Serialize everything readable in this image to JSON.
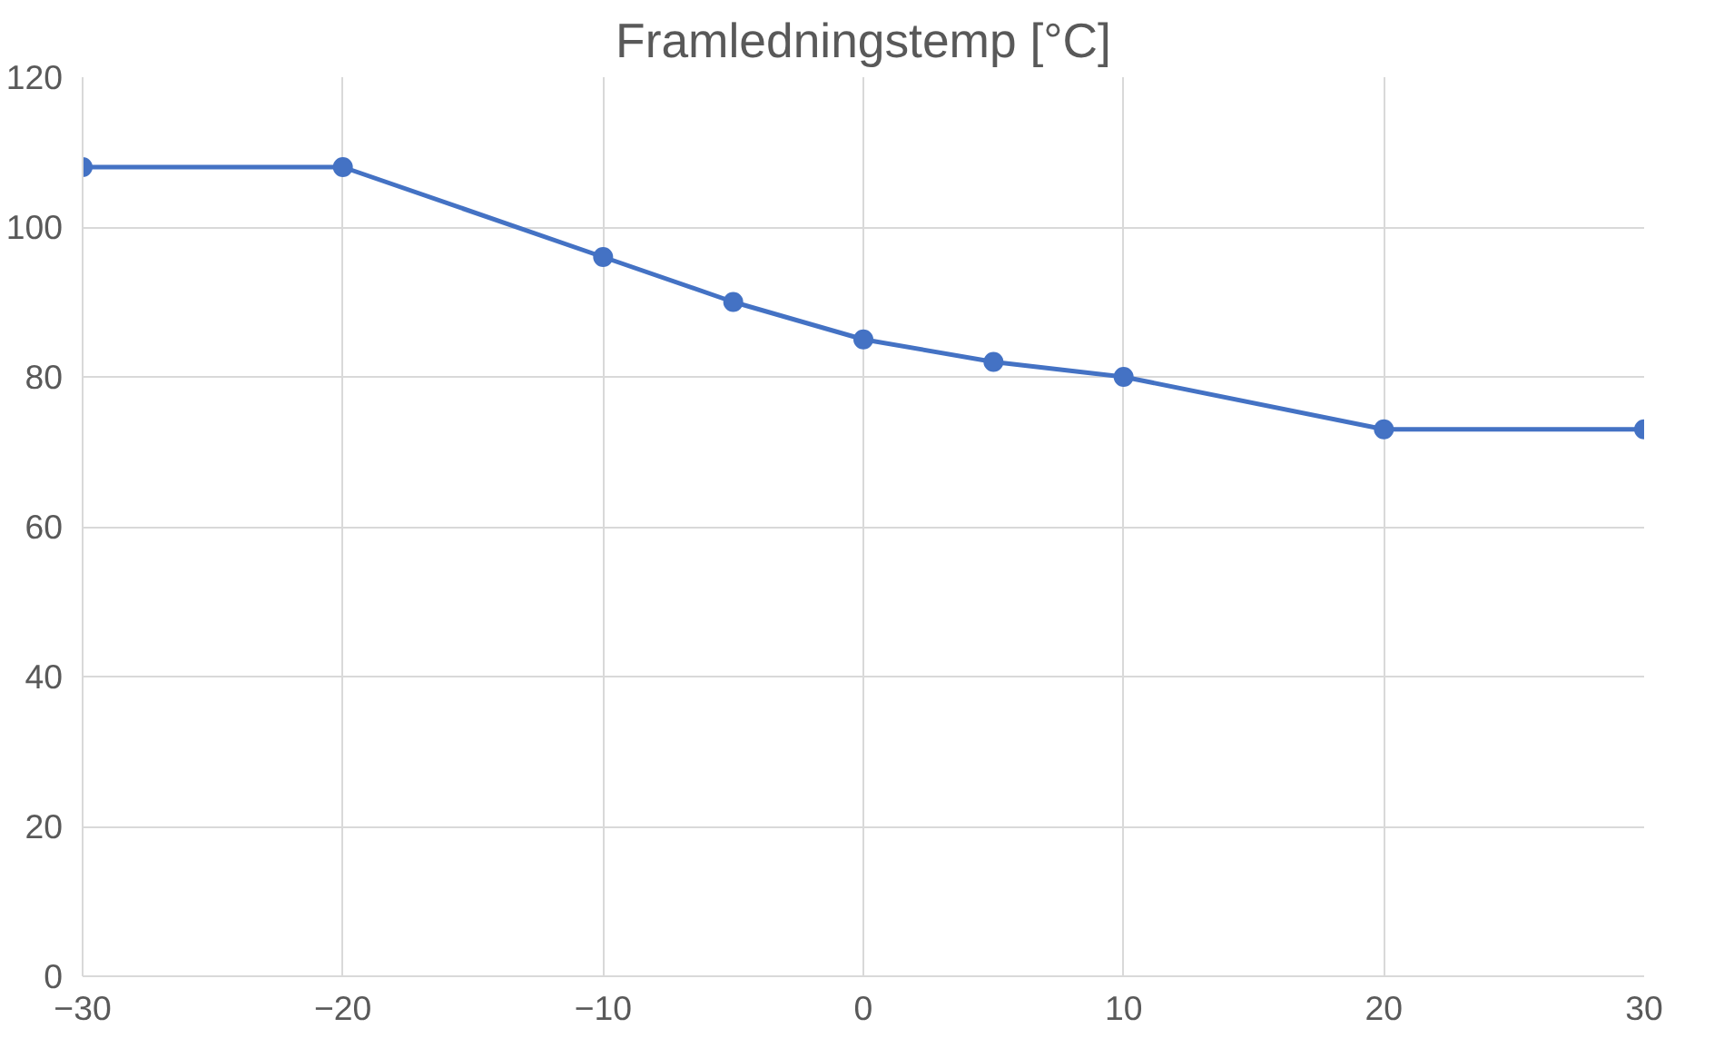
{
  "chart_data": {
    "type": "line",
    "title": "Framledningstemp [°C]",
    "x": [
      -30,
      -20,
      -10,
      -5,
      0,
      5,
      10,
      20,
      30
    ],
    "series": [
      {
        "color": "#4472c4",
        "values": [
          108,
          108,
          96,
          90,
          85,
          82,
          80,
          73,
          73
        ]
      }
    ],
    "xlim": [
      -30,
      30
    ],
    "xticks": [
      -30,
      -20,
      -10,
      0,
      10,
      20,
      30
    ],
    "ylim": [
      0,
      120
    ],
    "yticks": [
      0,
      20,
      40,
      60,
      80,
      100,
      120
    ],
    "grid": true,
    "marker": "circle",
    "line_style": "solid"
  }
}
